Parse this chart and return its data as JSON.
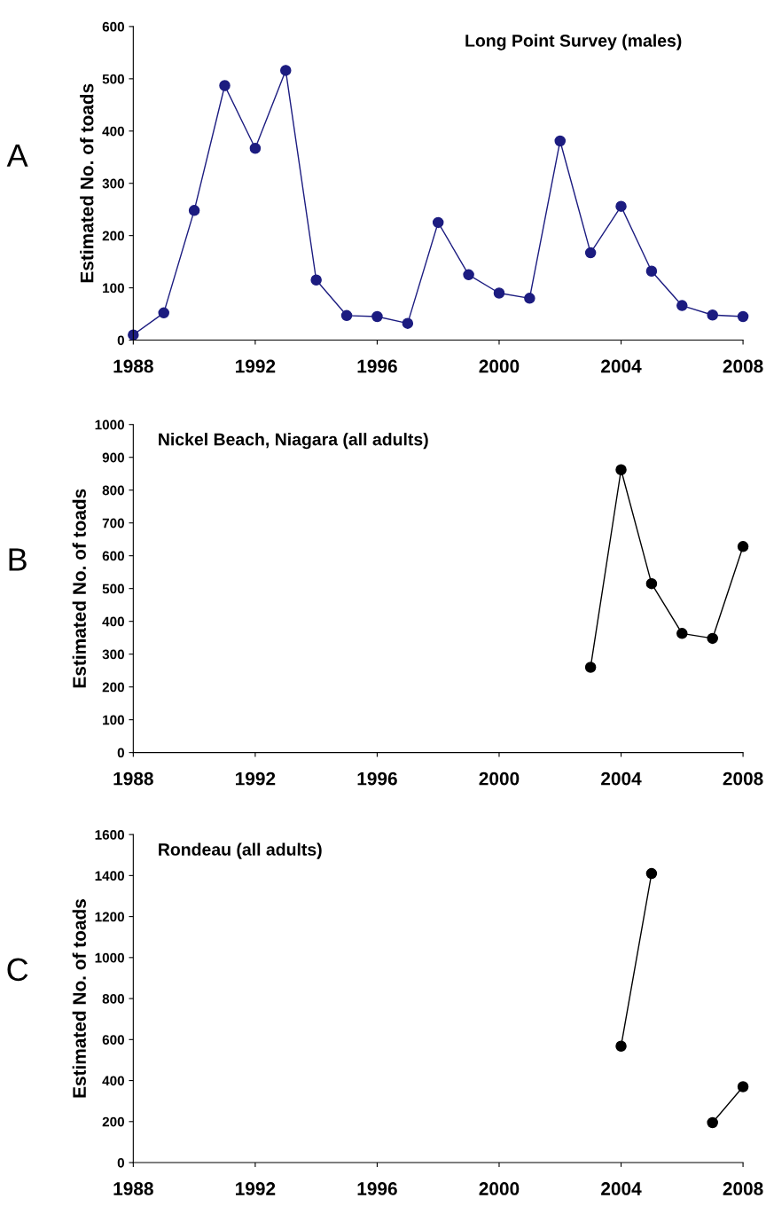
{
  "chart_data": [
    {
      "type": "line",
      "title": "Long Point Survey (males)",
      "ylabel": "Estimated No. of toads",
      "annotations": [
        "A"
      ],
      "x": [
        1988,
        1989,
        1990,
        1991,
        1992,
        1993,
        1994,
        1995,
        1996,
        1997,
        1998,
        1999,
        2000,
        2001,
        2002,
        2003,
        2004,
        2005,
        2006,
        2007,
        2008
      ],
      "series": [
        {
          "color": "#1c1c80",
          "values": [
            10,
            52,
            248,
            487,
            367,
            516,
            115,
            47,
            45,
            32,
            225,
            125,
            90,
            80,
            381,
            167,
            256,
            132,
            66,
            48,
            45
          ]
        }
      ],
      "xlim": [
        1988,
        2008
      ],
      "xticks": [
        1988,
        1992,
        1996,
        2000,
        2004,
        2008
      ],
      "ylim": [
        0,
        600
      ],
      "yticks": [
        0,
        100,
        200,
        300,
        400,
        500,
        600
      ],
      "marker": "circle",
      "grid": false,
      "legend": false
    },
    {
      "type": "line",
      "title": "Nickel Beach, Niagara (all adults)",
      "ylabel": "Estimated No. of toads",
      "annotations": [
        "B"
      ],
      "x": [
        2003,
        2004,
        2005,
        2006,
        2007,
        2008
      ],
      "series": [
        {
          "color": "#000000",
          "values": [
            260,
            862,
            515,
            363,
            348,
            628
          ]
        }
      ],
      "xlim": [
        1988,
        2008
      ],
      "xticks": [
        1988,
        1992,
        1996,
        2000,
        2004,
        2008
      ],
      "ylim": [
        0,
        1000
      ],
      "yticks": [
        0,
        100,
        200,
        300,
        400,
        500,
        600,
        700,
        800,
        900,
        1000
      ],
      "marker": "circle",
      "grid": false,
      "legend": false
    },
    {
      "type": "line",
      "title": "Rondeau (all adults)",
      "ylabel": "Estimated No. of toads",
      "annotations": [
        "C"
      ],
      "x": [
        2004,
        2005,
        2006,
        2007,
        2008
      ],
      "series": [
        {
          "color": "#000000",
          "values": [
            568,
            1410,
            null,
            195,
            370
          ]
        }
      ],
      "xlim": [
        1988,
        2008
      ],
      "xticks": [
        1988,
        1992,
        1996,
        2000,
        2004,
        2008
      ],
      "ylim": [
        0,
        1600
      ],
      "yticks": [
        0,
        200,
        400,
        600,
        800,
        1000,
        1200,
        1400,
        1600
      ],
      "marker": "circle",
      "grid": false,
      "legend": false
    }
  ]
}
